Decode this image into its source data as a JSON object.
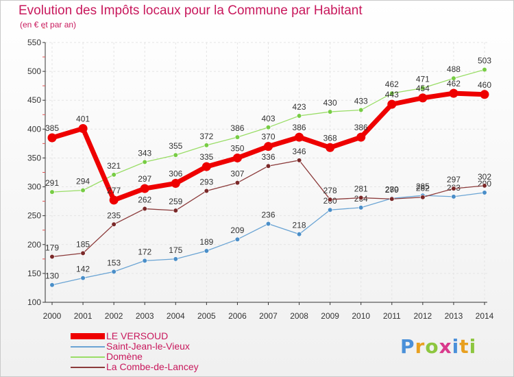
{
  "chart_data": {
    "type": "line",
    "title": "Evolution des Impôts locaux pour la Commune par Habitant",
    "subtitle": "(en € et par an)",
    "categories": [
      "2000",
      "2001",
      "2002",
      "2003",
      "2004",
      "2005",
      "2006",
      "2007",
      "2008",
      "2009",
      "2010",
      "2011",
      "2012",
      "2013",
      "2014"
    ],
    "ylim": [
      100,
      550
    ],
    "yticks": [
      100,
      150,
      200,
      250,
      300,
      350,
      400,
      450,
      500,
      550
    ],
    "series": [
      {
        "name": "LE VERSOUD",
        "color": "#ee0000",
        "emphasis": true,
        "values": [
          385,
          401,
          277,
          297,
          306,
          335,
          350,
          370,
          386,
          368,
          386,
          443,
          454,
          462,
          460
        ]
      },
      {
        "name": "Saint-Jean-le-Vieux",
        "color": "#6aa4d4",
        "marker": "#4a8ec8",
        "values": [
          130,
          142,
          153,
          172,
          175,
          189,
          209,
          236,
          218,
          260,
          264,
          280,
          285,
          283,
          290
        ],
        "labels": [
          "130",
          "142",
          "153",
          "172",
          "175",
          "189",
          "209",
          "236",
          "218",
          "260",
          "264",
          "280",
          "285",
          "283",
          "290"
        ]
      },
      {
        "name": "Domène",
        "color": "#99dd66",
        "marker": "#77cc44",
        "values": [
          291,
          294,
          321,
          343,
          355,
          372,
          386,
          403,
          423,
          430,
          433,
          462,
          471,
          488,
          503
        ]
      },
      {
        "name": "La Combe-de-Lancey",
        "color": "#8b3a3a",
        "marker": "#7a2828",
        "values": [
          179,
          185,
          235,
          262,
          259,
          293,
          307,
          336,
          346,
          278,
          281,
          279,
          282,
          297,
          302
        ],
        "labels": [
          "179",
          "185",
          "235",
          "262",
          "259",
          "293",
          "307",
          "336",
          "346",
          "278",
          "281",
          "279",
          "282",
          "297",
          "302"
        ]
      }
    ]
  },
  "logo": {
    "letters": [
      "P",
      "r",
      "o",
      "x",
      "i",
      "t",
      "i"
    ],
    "colors": [
      "#4a90d9",
      "#e8a020",
      "#8dc63f",
      "#d93a8c",
      "#4a90d9",
      "#e8a020",
      "#8dc63f"
    ]
  }
}
